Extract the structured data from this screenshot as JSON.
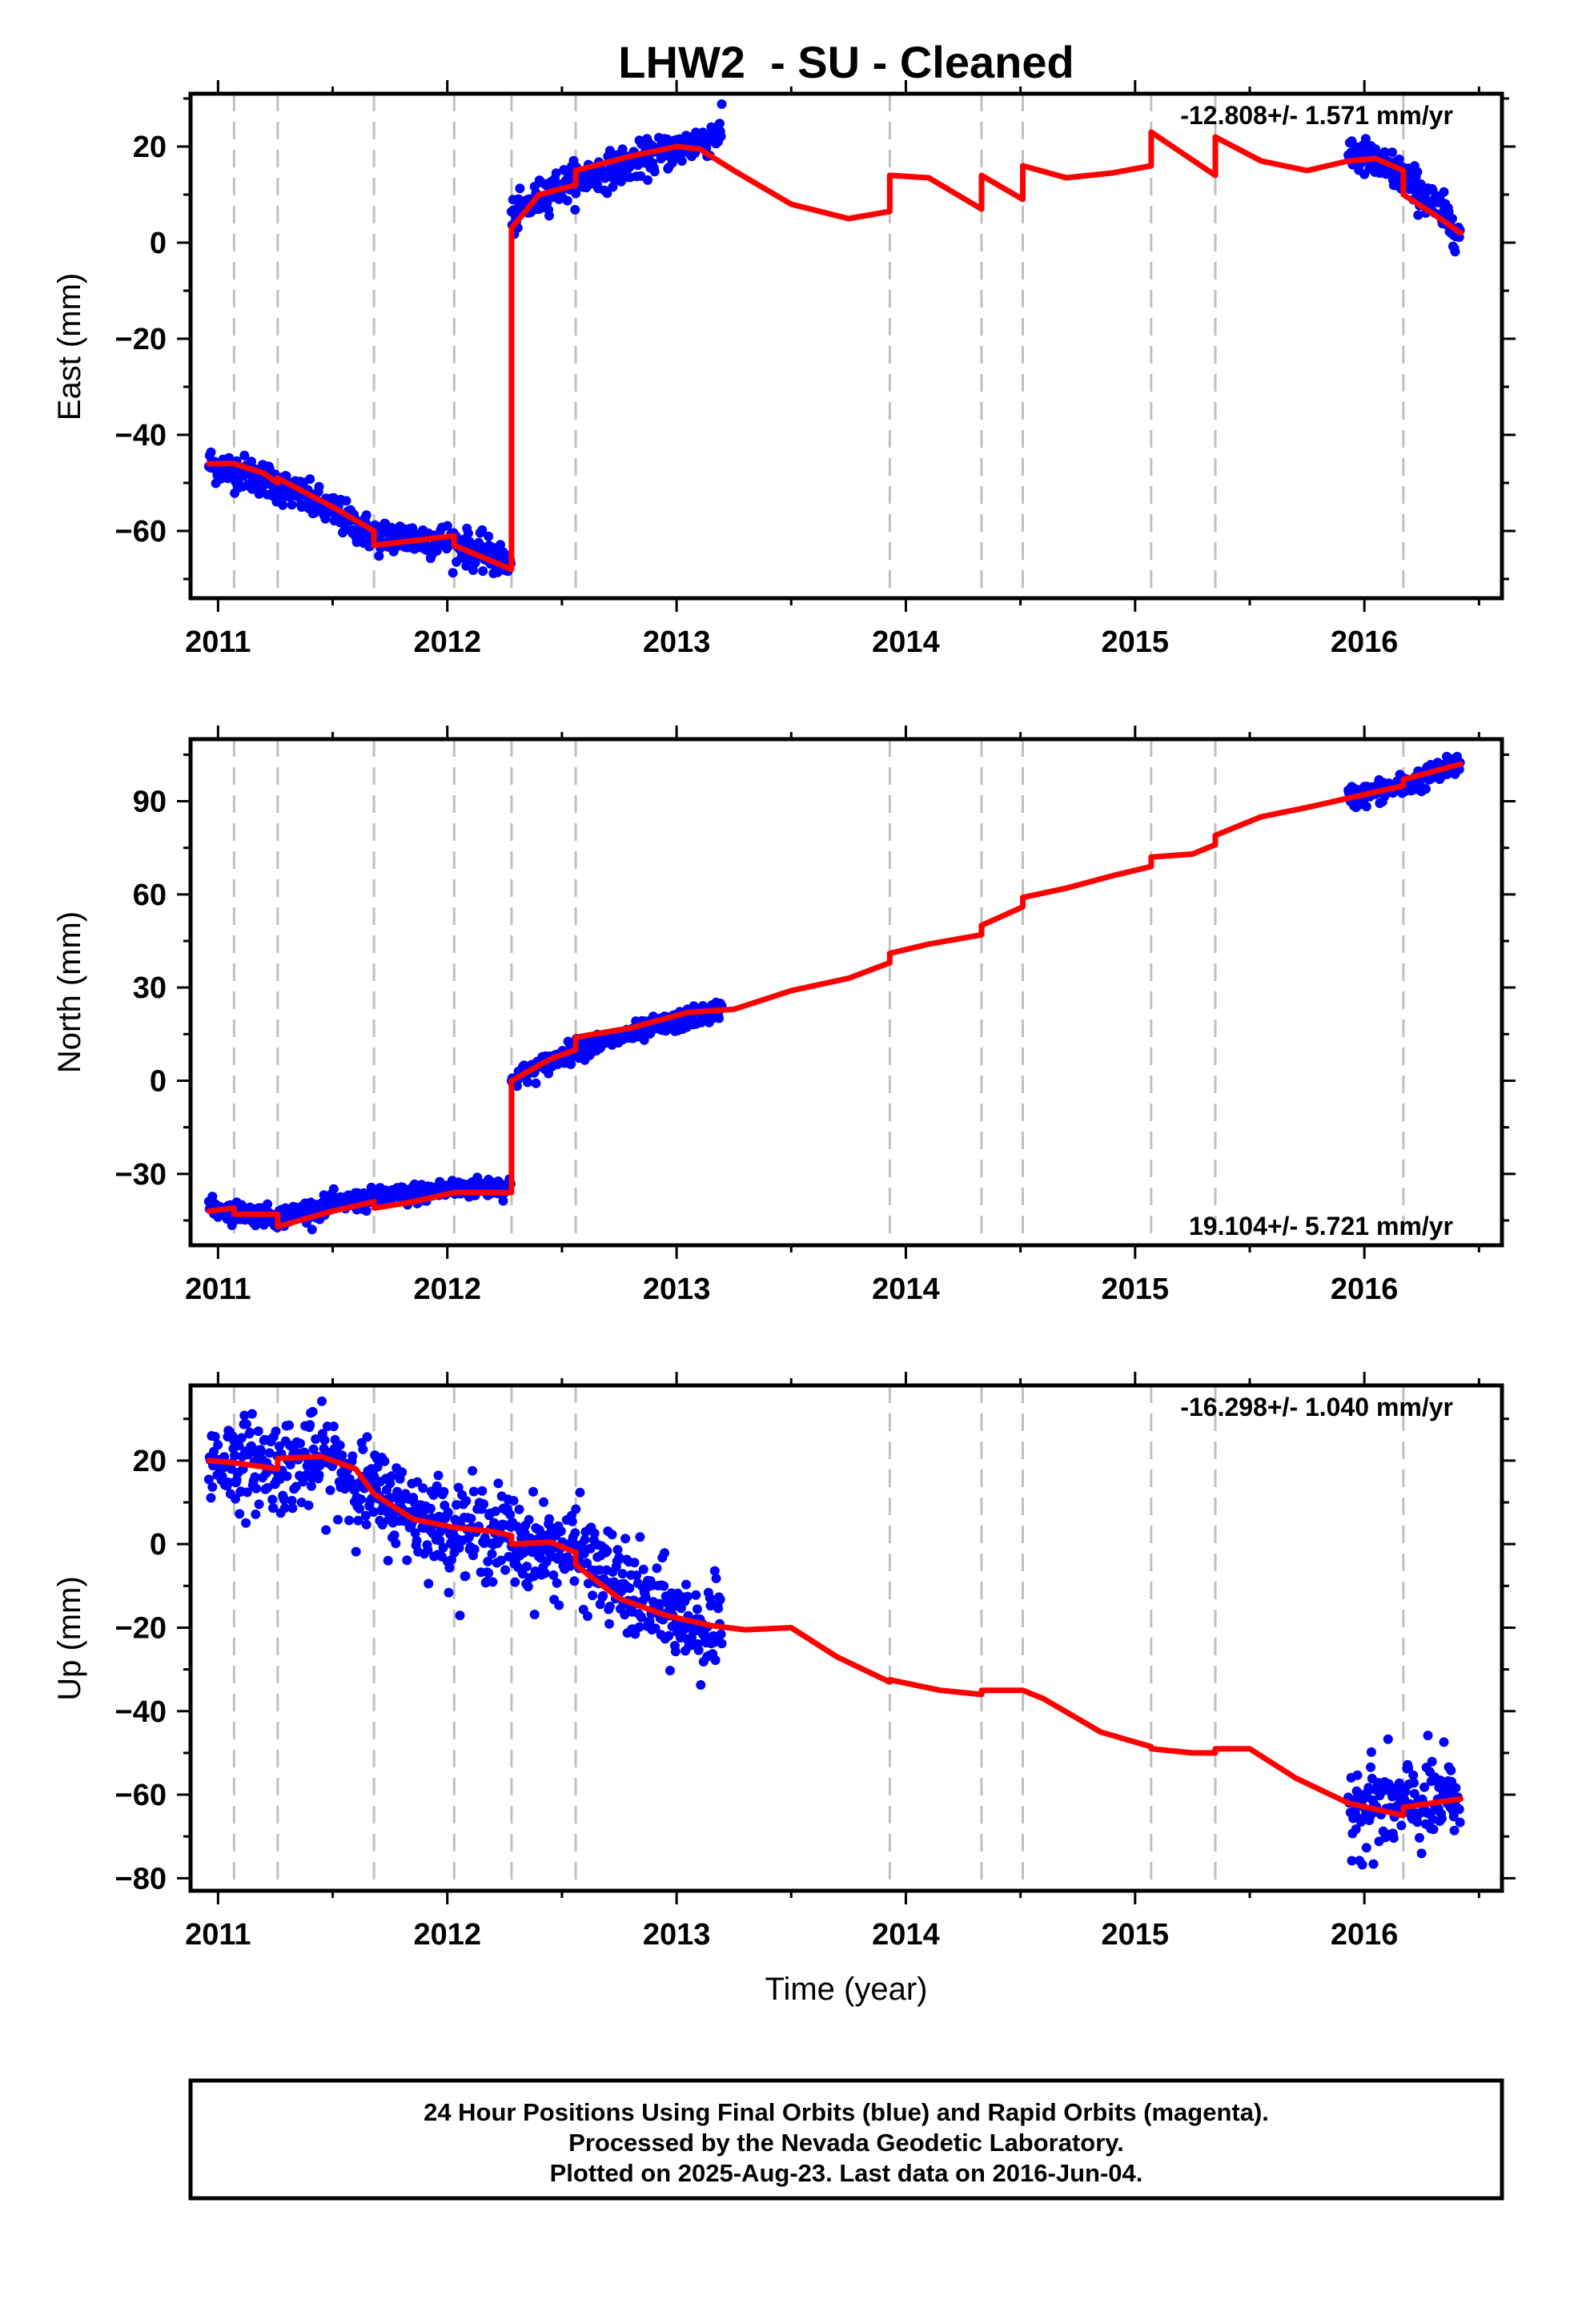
{
  "title": "LHW2  - SU - Cleaned",
  "colors": {
    "final_orbits": "#0000ff",
    "model_line": "#ff0000",
    "break_lines": "#c0c0c0",
    "frame": "#000000"
  },
  "footer": {
    "line1": "24 Hour Positions Using Final Orbits (blue) and Rapid Orbits (magenta).",
    "line2": "Processed by the Nevada Geodetic Laboratory.",
    "line3": "Plotted on 2025-Aug-23. Last data on 2016-Jun-04."
  },
  "chart_data": [
    {
      "type": "scatter",
      "component": "east",
      "ylabel": "East (mm)",
      "xlabel": "",
      "rate_text": "-12.808+/- 1.571 mm/yr",
      "rate_position": "top-right",
      "xlim": [
        2010.88,
        2016.6
      ],
      "ylim": [
        -74,
        31
      ],
      "xticks": [
        2011,
        2012,
        2013,
        2014,
        2015,
        2016
      ],
      "yticks": [
        20,
        0,
        -20,
        -40,
        -60
      ],
      "ytick_labels": [
        "20",
        "0",
        "−20",
        "−40",
        "−60"
      ],
      "breaks": [
        2011.07,
        2011.26,
        2011.68,
        2012.03,
        2012.28,
        2012.56,
        2013.93,
        2014.33,
        2014.51,
        2015.07,
        2015.35,
        2016.17
      ],
      "observation_segments": [
        {
          "x0": 2010.96,
          "x1": 2012.28,
          "trend": [
            [
              2010.96,
              -46
            ],
            [
              2011.2,
              -49
            ],
            [
              2011.5,
              -56
            ],
            [
              2011.68,
              -61
            ],
            [
              2012.0,
              -62
            ],
            [
              2012.28,
              -67
            ]
          ],
          "scatter": 1.8
        },
        {
          "x0": 2012.28,
          "x1": 2013.2,
          "trend": [
            [
              2012.28,
              5
            ],
            [
              2012.45,
              11
            ],
            [
              2012.56,
              13
            ],
            [
              2012.9,
              18
            ],
            [
              2013.1,
              21
            ],
            [
              2013.2,
              23
            ]
          ],
          "scatter": 1.8
        },
        {
          "x0": 2015.93,
          "x1": 2016.42,
          "trend": [
            [
              2015.93,
              19
            ],
            [
              2016.17,
              14
            ],
            [
              2016.3,
              8
            ],
            [
              2016.42,
              2
            ]
          ],
          "scatter": 2.0
        }
      ],
      "model": [
        [
          2010.96,
          -46
        ],
        [
          2011.07,
          -46
        ],
        [
          2011.2,
          -48
        ],
        [
          2011.26,
          -50
        ],
        [
          2011.26,
          -49
        ],
        [
          2011.5,
          -55
        ],
        [
          2011.68,
          -60
        ],
        [
          2011.68,
          -63
        ],
        [
          2012.03,
          -61
        ],
        [
          2012.03,
          -63
        ],
        [
          2012.28,
          -68
        ],
        [
          2012.28,
          3
        ],
        [
          2012.4,
          10
        ],
        [
          2012.56,
          12
        ],
        [
          2012.56,
          15
        ],
        [
          2012.8,
          18
        ],
        [
          2013.0,
          20
        ],
        [
          2013.1,
          19.5
        ],
        [
          2013.25,
          15
        ],
        [
          2013.5,
          8
        ],
        [
          2013.75,
          5
        ],
        [
          2013.93,
          6.5
        ],
        [
          2013.93,
          14
        ],
        [
          2014.1,
          13.5
        ],
        [
          2014.33,
          7
        ],
        [
          2014.33,
          14
        ],
        [
          2014.51,
          9
        ],
        [
          2014.51,
          16
        ],
        [
          2014.7,
          13.5
        ],
        [
          2014.9,
          14.5
        ],
        [
          2015.07,
          16
        ],
        [
          2015.07,
          23
        ],
        [
          2015.35,
          14
        ],
        [
          2015.35,
          22
        ],
        [
          2015.55,
          17
        ],
        [
          2015.75,
          15
        ],
        [
          2015.93,
          17
        ],
        [
          2016.05,
          17.5
        ],
        [
          2016.17,
          15
        ],
        [
          2016.17,
          10
        ],
        [
          2016.3,
          6
        ],
        [
          2016.42,
          2
        ]
      ]
    },
    {
      "type": "scatter",
      "component": "north",
      "ylabel": "North (mm)",
      "xlabel": "",
      "rate_text": "19.104+/- 5.721 mm/yr",
      "rate_position": "bottom-right",
      "xlim": [
        2010.88,
        2016.6
      ],
      "ylim": [
        -53,
        110
      ],
      "xticks": [
        2011,
        2012,
        2013,
        2014,
        2015,
        2016
      ],
      "yticks": [
        90,
        60,
        30,
        0,
        -30
      ],
      "ytick_labels": [
        "90",
        "60",
        "30",
        "0",
        "−30"
      ],
      "breaks": [
        2011.07,
        2011.26,
        2011.68,
        2012.03,
        2012.28,
        2012.56,
        2013.93,
        2014.33,
        2014.51,
        2015.07,
        2015.35,
        2016.17
      ],
      "observation_segments": [
        {
          "x0": 2010.96,
          "x1": 2012.28,
          "trend": [
            [
              2010.96,
              -41
            ],
            [
              2011.26,
              -44
            ],
            [
              2011.5,
              -40
            ],
            [
              2011.68,
              -38
            ],
            [
              2012.0,
              -35
            ],
            [
              2012.28,
              -34
            ]
          ],
          "scatter": 1.6
        },
        {
          "x0": 2012.28,
          "x1": 2013.2,
          "trend": [
            [
              2012.28,
              0
            ],
            [
              2012.56,
              10
            ],
            [
              2012.8,
              15
            ],
            [
              2013.2,
              23
            ]
          ],
          "scatter": 1.6
        },
        {
          "x0": 2015.93,
          "x1": 2016.42,
          "trend": [
            [
              2015.93,
              91
            ],
            [
              2016.17,
              95
            ],
            [
              2016.42,
              102
            ]
          ],
          "scatter": 1.8
        }
      ],
      "model": [
        [
          2010.96,
          -42
        ],
        [
          2011.07,
          -41
        ],
        [
          2011.07,
          -43
        ],
        [
          2011.26,
          -43
        ],
        [
          2011.26,
          -47
        ],
        [
          2011.5,
          -42
        ],
        [
          2011.68,
          -39
        ],
        [
          2011.68,
          -41
        ],
        [
          2011.85,
          -39
        ],
        [
          2012.03,
          -36
        ],
        [
          2012.28,
          -36
        ],
        [
          2012.28,
          0
        ],
        [
          2012.45,
          7
        ],
        [
          2012.56,
          10
        ],
        [
          2012.56,
          14
        ],
        [
          2012.8,
          17
        ],
        [
          2013.05,
          22
        ],
        [
          2013.25,
          23
        ],
        [
          2013.5,
          29
        ],
        [
          2013.75,
          33
        ],
        [
          2013.93,
          38
        ],
        [
          2013.93,
          41
        ],
        [
          2014.1,
          44
        ],
        [
          2014.33,
          47
        ],
        [
          2014.33,
          50
        ],
        [
          2014.51,
          56
        ],
        [
          2014.51,
          59
        ],
        [
          2014.7,
          62
        ],
        [
          2014.9,
          66
        ],
        [
          2015.07,
          69
        ],
        [
          2015.07,
          72
        ],
        [
          2015.25,
          73
        ],
        [
          2015.35,
          76
        ],
        [
          2015.35,
          79
        ],
        [
          2015.55,
          85
        ],
        [
          2015.75,
          88
        ],
        [
          2015.93,
          91
        ],
        [
          2016.17,
          95
        ],
        [
          2016.17,
          97
        ],
        [
          2016.42,
          102
        ]
      ]
    },
    {
      "type": "scatter",
      "component": "up",
      "ylabel": "Up (mm)",
      "xlabel": "Time (year)",
      "rate_text": "-16.298+/- 1.040 mm/yr",
      "rate_position": "top-right",
      "xlim": [
        2010.88,
        2016.6
      ],
      "ylim": [
        -83,
        38
      ],
      "xticks": [
        2011,
        2012,
        2013,
        2014,
        2015,
        2016
      ],
      "yticks": [
        20,
        0,
        -20,
        -40,
        -60,
        -80
      ],
      "ytick_labels": [
        "20",
        "0",
        "−20",
        "−40",
        "−60",
        "−80"
      ],
      "breaks": [
        2011.07,
        2011.26,
        2011.68,
        2012.03,
        2012.28,
        2012.56,
        2013.93,
        2014.33,
        2014.51,
        2015.07,
        2015.35,
        2016.17
      ],
      "observation_segments": [
        {
          "x0": 2010.96,
          "x1": 2012.28,
          "trend": [
            [
              2010.96,
              20
            ],
            [
              2011.26,
              19
            ],
            [
              2011.5,
              20
            ],
            [
              2011.68,
              12
            ],
            [
              2012.0,
              4
            ],
            [
              2012.28,
              2
            ]
          ],
          "scatter": 5.5
        },
        {
          "x0": 2012.28,
          "x1": 2013.2,
          "trend": [
            [
              2012.28,
              0
            ],
            [
              2012.56,
              -2
            ],
            [
              2012.8,
              -12
            ],
            [
              2013.0,
              -18
            ],
            [
              2013.2,
              -22
            ]
          ],
          "scatter": 5.5
        },
        {
          "x0": 2015.93,
          "x1": 2016.42,
          "trend": [
            [
              2015.93,
              -62
            ],
            [
              2016.17,
              -63
            ],
            [
              2016.42,
              -61
            ]
          ],
          "scatter": 5.5
        }
      ],
      "model": [
        [
          2010.96,
          20
        ],
        [
          2011.07,
          19.5
        ],
        [
          2011.26,
          18
        ],
        [
          2011.26,
          20.5
        ],
        [
          2011.45,
          21
        ],
        [
          2011.6,
          18
        ],
        [
          2011.68,
          12
        ],
        [
          2011.85,
          6
        ],
        [
          2012.03,
          4
        ],
        [
          2012.2,
          3
        ],
        [
          2012.28,
          2
        ],
        [
          2012.28,
          0
        ],
        [
          2012.45,
          0.5
        ],
        [
          2012.56,
          -2
        ],
        [
          2012.56,
          -5
        ],
        [
          2012.75,
          -13
        ],
        [
          2012.95,
          -17
        ],
        [
          2013.15,
          -19.5
        ],
        [
          2013.3,
          -20.5
        ],
        [
          2013.5,
          -20
        ],
        [
          2013.7,
          -27
        ],
        [
          2013.93,
          -33
        ],
        [
          2013.93,
          -32.5
        ],
        [
          2014.15,
          -35
        ],
        [
          2014.33,
          -36
        ],
        [
          2014.33,
          -35
        ],
        [
          2014.51,
          -35
        ],
        [
          2014.6,
          -37
        ],
        [
          2014.85,
          -45
        ],
        [
          2015.07,
          -48.5
        ],
        [
          2015.07,
          -49
        ],
        [
          2015.25,
          -50
        ],
        [
          2015.35,
          -50
        ],
        [
          2015.35,
          -49
        ],
        [
          2015.5,
          -49
        ],
        [
          2015.7,
          -56
        ],
        [
          2015.93,
          -62
        ],
        [
          2016.17,
          -65
        ],
        [
          2016.17,
          -63
        ],
        [
          2016.42,
          -61
        ]
      ]
    }
  ]
}
